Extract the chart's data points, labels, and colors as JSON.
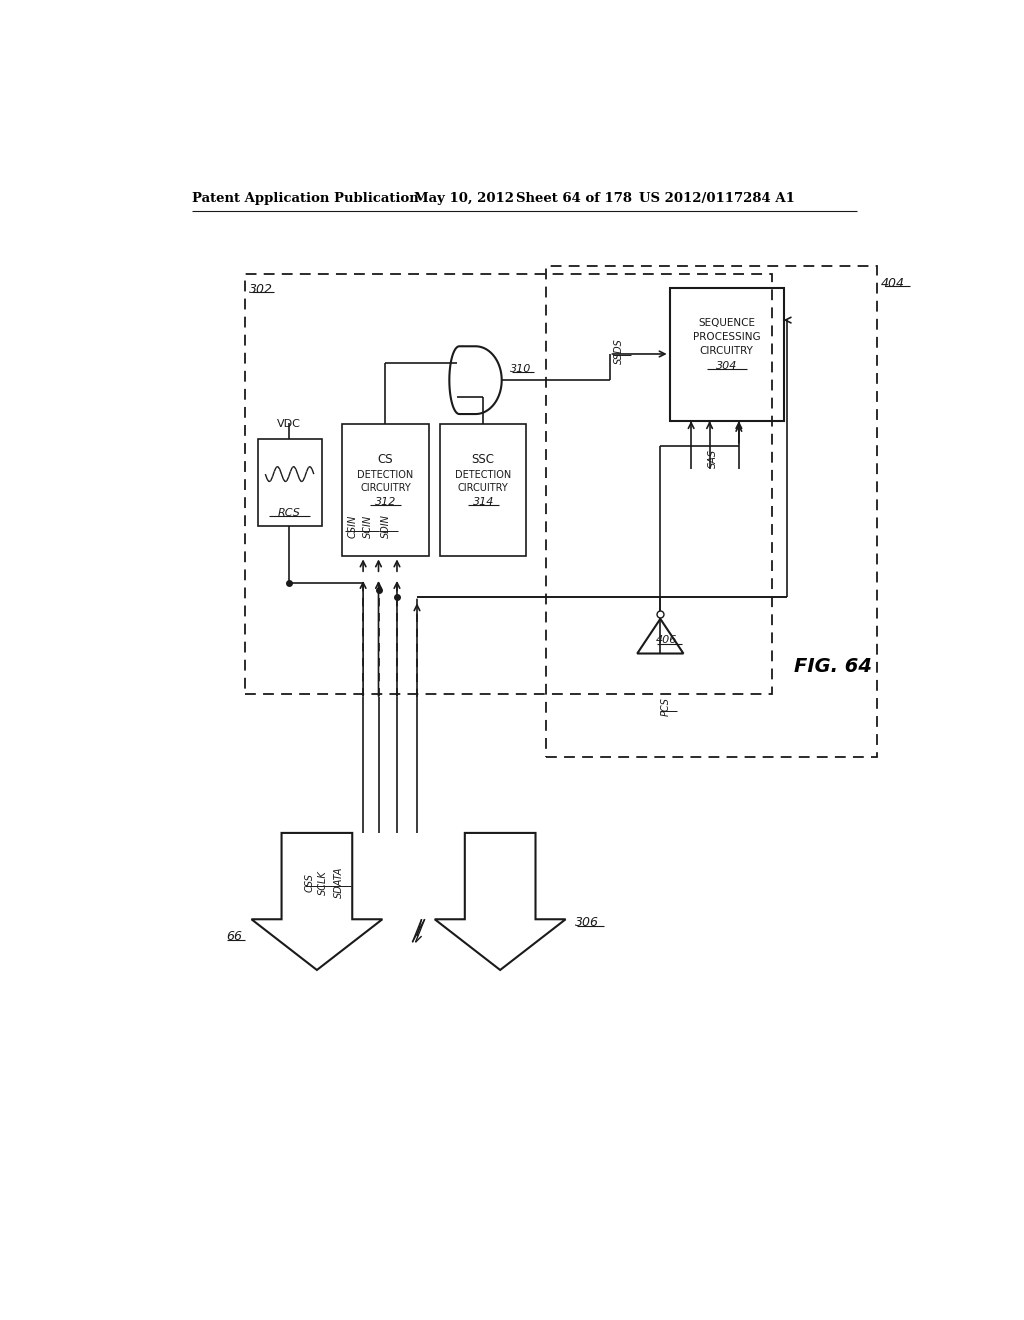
{
  "bg_color": "#ffffff",
  "line_color": "#1a1a1a",
  "header": {
    "left": "Patent Application Publication",
    "middle1": "May 10, 2012",
    "middle2": "Sheet 64 of 178",
    "right": "US 2012/0117284 A1"
  },
  "fig_label": "FIG. 64"
}
